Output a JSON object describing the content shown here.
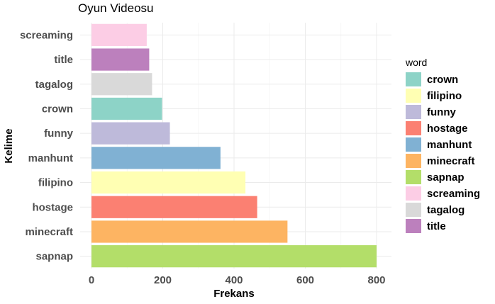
{
  "chart_data": {
    "type": "bar",
    "orientation": "horizontal",
    "title": "Oyun Videosu",
    "xlabel": "Frekans",
    "ylabel": "Kelime",
    "xlim": [
      0,
      840
    ],
    "xticks": [
      0,
      200,
      400,
      600,
      800
    ],
    "grid": true,
    "categories": [
      "sapnap",
      "minecraft",
      "hostage",
      "filipino",
      "manhunt",
      "funny",
      "crown",
      "tagalog",
      "title",
      "screaming"
    ],
    "values": [
      800,
      550,
      465,
      432,
      362,
      220,
      198,
      170,
      162,
      155
    ],
    "bar_colors": {
      "crown": "#8DD3C7",
      "filipino": "#FFFFB3",
      "funny": "#BEBADA",
      "hostage": "#FB8072",
      "manhunt": "#80B1D3",
      "minecraft": "#FDB462",
      "sapnap": "#B3DE69",
      "screaming": "#FCCDE5",
      "tagalog": "#D9D9D9",
      "title": "#BC80BD"
    },
    "legend": {
      "title": "word",
      "placement": "right",
      "entries": [
        "crown",
        "filipino",
        "funny",
        "hostage",
        "manhunt",
        "minecraft",
        "sapnap",
        "screaming",
        "tagalog",
        "title"
      ]
    }
  }
}
